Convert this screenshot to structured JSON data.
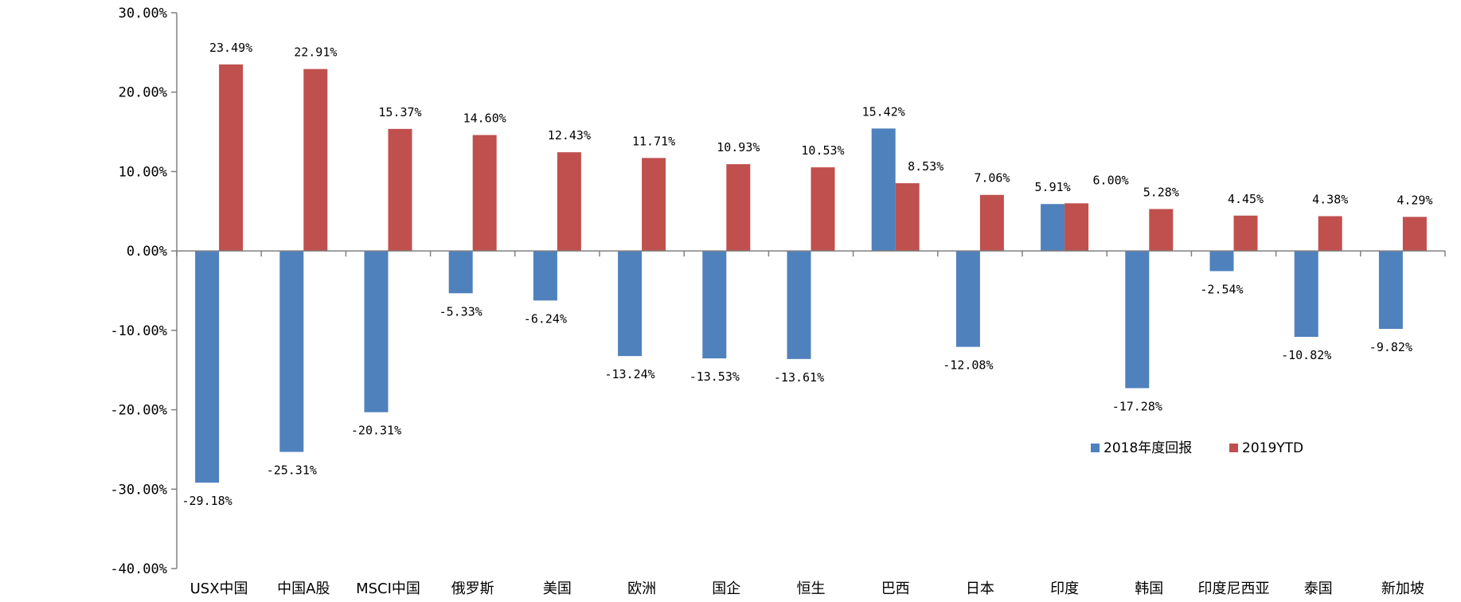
{
  "chart_data": {
    "type": "bar",
    "categories": [
      "USX中国",
      "中国A股",
      "MSCI中国",
      "俄罗斯",
      "美国",
      "欧洲",
      "国企",
      "恒生",
      "巴西",
      "日本",
      "印度",
      "韩国",
      "印度尼西亚",
      "泰国",
      "新加坡"
    ],
    "series": [
      {
        "name": "2018年度回报",
        "color": "#4f81bd",
        "values": [
          -29.18,
          -25.31,
          -20.31,
          -5.33,
          -6.24,
          -13.24,
          -13.53,
          -13.61,
          15.42,
          -12.08,
          5.91,
          -17.28,
          -2.54,
          -10.82,
          -9.82
        ],
        "labels": [
          "-29.18%",
          "-25.31%",
          "-20.31%",
          "-5.33%",
          "-6.24%",
          "-13.24%",
          "-13.53%",
          "-13.61%",
          "15.42%",
          "-12.08%",
          "5.91%",
          "-17.28%",
          "-2.54%",
          "-10.82%",
          "-9.82%"
        ]
      },
      {
        "name": "2019YTD",
        "color": "#c0504d",
        "values": [
          23.49,
          22.91,
          15.37,
          14.6,
          12.43,
          11.71,
          10.93,
          10.53,
          8.53,
          7.06,
          6.0,
          5.28,
          4.45,
          4.38,
          4.29
        ],
        "labels": [
          "23.49%",
          "22.91%",
          "15.37%",
          "14.60%",
          "12.43%",
          "11.71%",
          "10.93%",
          "10.53%",
          "8.53%",
          "7.06%",
          "6.00%",
          "5.28%",
          "4.45%",
          "4.38%",
          "4.29%"
        ]
      }
    ],
    "ylim": [
      -40,
      30
    ],
    "yticks": [
      30,
      20,
      10,
      0,
      -10,
      -20,
      -30,
      -40
    ],
    "ytick_labels": [
      "30.00%",
      "20.00%",
      "10.00%",
      "0.00%",
      "-10.00%",
      "-20.00%",
      "-30.00%",
      "-40.00%"
    ],
    "title": "",
    "xlabel": "",
    "ylabel": "",
    "grid": false,
    "legend_position": "lower-right"
  }
}
